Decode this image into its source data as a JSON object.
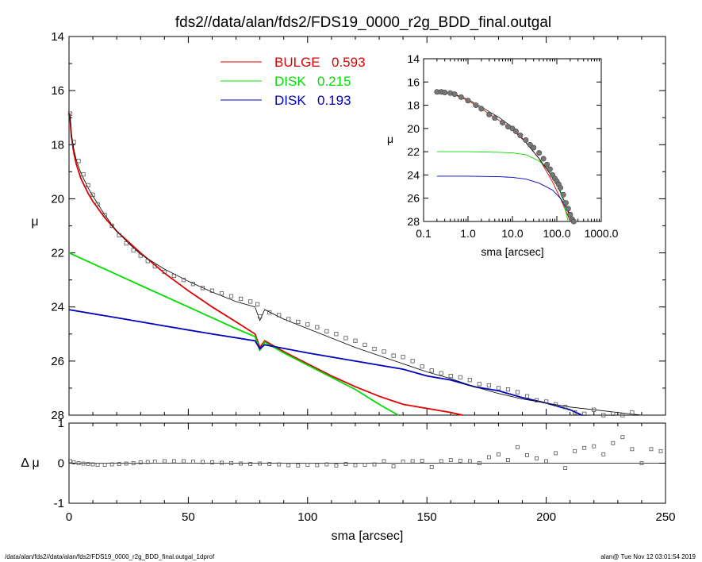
{
  "title": "fds2//data/alan/fds2/FDS19_0000_r2g_BDD_final.outgal",
  "footer": {
    "left": "/data/alan/fds2//data/alan/fds2/FDS19_0000_r2g_BDD_final.outgal_1dprof",
    "right": "alan@  Tue Nov 12 03:01:54 2019"
  },
  "colors": {
    "bulge": "#e00000",
    "disk1": "#00dd00",
    "disk2": "#0000c0",
    "data": "#000000",
    "model": "#000000"
  },
  "chart_data": [
    {
      "panel": "main",
      "type": "line",
      "title": "fds2//data/alan/fds2/FDS19_0000_r2g_BDD_final.outgal",
      "xlabel": "",
      "ylabel": "μ",
      "xlim": [
        0,
        250
      ],
      "ylim": [
        28,
        14
      ],
      "yticks": [
        "14",
        "16",
        "18",
        "20",
        "22",
        "24",
        "26",
        "28"
      ],
      "legend_position": "top-center",
      "legend": [
        {
          "label": "BULGE",
          "value": "0.593",
          "color": "#e00000"
        },
        {
          "label": "DISK",
          "value": "0.215",
          "color": "#00dd00"
        },
        {
          "label": "DISK",
          "value": "0.193",
          "color": "#0000c0"
        }
      ],
      "series": [
        {
          "name": "BULGE",
          "color": "#e00000",
          "x": [
            0.3,
            1,
            2,
            3,
            5,
            8,
            10,
            15,
            20,
            25,
            30,
            40,
            50,
            60,
            70,
            78,
            80,
            82,
            90,
            100,
            110,
            120,
            130,
            140,
            150,
            160,
            165
          ],
          "y": [
            16.85,
            17.7,
            18.3,
            18.7,
            19.25,
            19.8,
            20.1,
            20.7,
            21.2,
            21.6,
            22.0,
            22.75,
            23.4,
            24.0,
            24.55,
            25.0,
            25.5,
            25.25,
            25.65,
            26.1,
            26.55,
            26.95,
            27.3,
            27.6,
            27.75,
            27.9,
            28.0
          ]
        },
        {
          "name": "DISK",
          "color": "#00dd00",
          "x": [
            0,
            10,
            20,
            30,
            40,
            50,
            60,
            70,
            78,
            80,
            82,
            90,
            100,
            110,
            120,
            130,
            138
          ],
          "y": [
            22.0,
            22.4,
            22.8,
            23.2,
            23.6,
            24.0,
            24.4,
            24.8,
            25.1,
            25.6,
            25.3,
            25.7,
            26.15,
            26.6,
            27.05,
            27.6,
            28.0
          ]
        },
        {
          "name": "DISK",
          "color": "#0000c0",
          "x": [
            0,
            20,
            40,
            60,
            78,
            80,
            82,
            100,
            120,
            140,
            150,
            160,
            170,
            180,
            190,
            200,
            210,
            215
          ],
          "y": [
            24.1,
            24.4,
            24.7,
            25.0,
            25.25,
            25.55,
            25.4,
            25.7,
            26.0,
            26.3,
            26.55,
            26.7,
            26.95,
            27.1,
            27.35,
            27.55,
            27.8,
            28.0
          ]
        },
        {
          "name": "",
          "kind": "model",
          "color": "#000000",
          "x": [
            0.3,
            1,
            2,
            3,
            5,
            8,
            10,
            15,
            20,
            25,
            30,
            40,
            50,
            60,
            70,
            78,
            80,
            82,
            90,
            100,
            110,
            120,
            130,
            140,
            150,
            160,
            170,
            180,
            190,
            200,
            210,
            220,
            230,
            240,
            250
          ],
          "y": [
            16.85,
            17.6,
            18.15,
            18.55,
            19.05,
            19.6,
            19.9,
            20.6,
            21.2,
            21.65,
            22.05,
            22.6,
            23.05,
            23.45,
            23.8,
            24.0,
            24.5,
            24.1,
            24.45,
            24.8,
            25.15,
            25.5,
            25.8,
            26.1,
            26.4,
            26.65,
            26.95,
            27.2,
            27.4,
            27.55,
            27.7,
            27.8,
            27.9,
            28.0,
            28.05
          ]
        },
        {
          "name": "",
          "kind": "data",
          "color": "#000000",
          "x": [
            0.5,
            2,
            4,
            6,
            8,
            10,
            12,
            15,
            18,
            21,
            24,
            27,
            30,
            33,
            36,
            40,
            44,
            48,
            52,
            56,
            60,
            64,
            68,
            72,
            76,
            79,
            80,
            84,
            88,
            92,
            96,
            100,
            104,
            108,
            112,
            116,
            120,
            124,
            128,
            132,
            136,
            140,
            144,
            148,
            152,
            156,
            160,
            164,
            168,
            172,
            176,
            180,
            184,
            188,
            192,
            196,
            200,
            204,
            208,
            212,
            216,
            220,
            224,
            228,
            232,
            236,
            240
          ],
          "y": [
            16.85,
            17.9,
            18.6,
            19.1,
            19.5,
            19.85,
            20.2,
            20.6,
            21.0,
            21.35,
            21.65,
            21.9,
            22.1,
            22.3,
            22.5,
            22.7,
            22.85,
            23.0,
            23.15,
            23.3,
            23.4,
            23.5,
            23.6,
            23.7,
            23.8,
            23.9,
            24.35,
            24.2,
            24.3,
            24.45,
            24.55,
            24.65,
            24.75,
            24.9,
            25.0,
            25.15,
            25.25,
            25.4,
            25.55,
            25.65,
            25.8,
            25.85,
            26.0,
            26.2,
            26.35,
            26.45,
            26.55,
            26.6,
            26.7,
            26.85,
            26.9,
            27.0,
            27.05,
            27.15,
            27.3,
            27.45,
            27.5,
            27.6,
            27.7,
            27.9,
            27.95,
            27.8,
            28.0,
            27.95,
            28.0,
            27.9,
            28.1
          ]
        }
      ]
    },
    {
      "panel": "residual",
      "type": "scatter",
      "xlabel": "sma [arcsec]",
      "ylabel": "Δ μ",
      "xlim": [
        0,
        250
      ],
      "ylim": [
        -1,
        1
      ],
      "xticks": [
        "0",
        "50",
        "100",
        "150",
        "200",
        "250"
      ],
      "yticks": [
        "-1",
        "0",
        "1"
      ],
      "series": [
        {
          "name": "",
          "kind": "residual",
          "color": "#000000",
          "x": [
            0.5,
            2,
            4,
            6,
            8,
            10,
            12,
            15,
            18,
            21,
            24,
            27,
            30,
            33,
            36,
            40,
            44,
            48,
            52,
            56,
            60,
            64,
            68,
            72,
            76,
            80,
            84,
            88,
            92,
            96,
            100,
            104,
            108,
            112,
            116,
            120,
            124,
            128,
            132,
            136,
            140,
            144,
            148,
            152,
            156,
            160,
            164,
            168,
            172,
            176,
            180,
            184,
            188,
            192,
            196,
            200,
            204,
            208,
            212,
            216,
            220,
            224,
            228,
            232,
            236,
            240,
            244,
            248
          ],
          "y": [
            0.05,
            0.02,
            0.0,
            -0.01,
            -0.02,
            -0.03,
            -0.04,
            -0.04,
            -0.03,
            -0.02,
            -0.01,
            0.0,
            0.02,
            0.03,
            0.04,
            0.05,
            0.05,
            0.05,
            0.04,
            0.03,
            0.02,
            0.01,
            0.0,
            -0.01,
            -0.02,
            -0.01,
            -0.02,
            -0.03,
            -0.05,
            -0.06,
            -0.04,
            -0.05,
            -0.03,
            -0.06,
            -0.02,
            -0.05,
            -0.04,
            -0.03,
            0.05,
            -0.08,
            0.04,
            0.05,
            0.06,
            -0.1,
            0.05,
            0.08,
            0.06,
            0.05,
            0.0,
            0.15,
            0.22,
            0.08,
            0.4,
            0.2,
            0.12,
            0.05,
            0.25,
            -0.12,
            0.3,
            0.38,
            0.42,
            0.22,
            0.5,
            0.65,
            0.35,
            0.0,
            0.35,
            0.3
          ]
        }
      ]
    },
    {
      "panel": "inset",
      "type": "line",
      "xlabel": "sma [arcsec]",
      "ylabel": "μ",
      "xscale": "log",
      "xlim": [
        0.1,
        1000
      ],
      "ylim": [
        28,
        14
      ],
      "xticks": [
        "0.1",
        "1.0",
        "10.0",
        "100.0",
        "1000.0"
      ],
      "yticks": [
        "14",
        "16",
        "18",
        "20",
        "22",
        "24",
        "26",
        "28"
      ],
      "series": [
        {
          "name": "BULGE",
          "color": "#e00000",
          "x": [
            0.2,
            0.3,
            0.5,
            1,
            2,
            5,
            10,
            20,
            40,
            80,
            120,
            160,
            200
          ],
          "y": [
            16.85,
            16.9,
            17.1,
            17.6,
            18.3,
            19.3,
            20.1,
            21.2,
            22.6,
            24.6,
            26.0,
            27.1,
            28.0
          ]
        },
        {
          "name": "DISK",
          "color": "#00dd00",
          "x": [
            0.2,
            1,
            5,
            10,
            20,
            40,
            60,
            80,
            100,
            120,
            140,
            160,
            180
          ],
          "y": [
            22.0,
            22.0,
            22.05,
            22.1,
            22.25,
            22.8,
            23.4,
            24.0,
            24.8,
            25.5,
            26.3,
            27.2,
            28.0
          ]
        },
        {
          "name": "DISK",
          "color": "#0000c0",
          "x": [
            0.2,
            1,
            5,
            10,
            20,
            40,
            80,
            120,
            160,
            200,
            220
          ],
          "y": [
            24.1,
            24.1,
            24.15,
            24.2,
            24.35,
            24.7,
            25.3,
            26.0,
            26.8,
            27.6,
            28.0
          ]
        },
        {
          "name": "",
          "kind": "model",
          "color": "#000000",
          "x": [
            0.2,
            0.3,
            0.5,
            1,
            2,
            5,
            10,
            20,
            40,
            80,
            120,
            160,
            200,
            240
          ],
          "y": [
            16.85,
            16.9,
            17.05,
            17.5,
            18.15,
            19.05,
            19.9,
            21.2,
            22.6,
            24.2,
            25.4,
            26.6,
            27.5,
            28.0
          ]
        },
        {
          "name": "",
          "kind": "data",
          "color": "#000000",
          "x": [
            0.2,
            0.25,
            0.3,
            0.4,
            0.5,
            0.7,
            1,
            1.5,
            2,
            3,
            4,
            6,
            8,
            10,
            12,
            15,
            20,
            25,
            30,
            40,
            50,
            60,
            70,
            80,
            90,
            100,
            110,
            120,
            140,
            160,
            180,
            200,
            220,
            240
          ],
          "y": [
            16.85,
            16.85,
            16.9,
            16.95,
            17.05,
            17.3,
            17.6,
            18.0,
            18.3,
            18.8,
            19.1,
            19.5,
            19.85,
            20.0,
            20.25,
            20.6,
            21.0,
            21.4,
            21.65,
            22.1,
            22.6,
            23.1,
            23.5,
            24.0,
            24.3,
            24.55,
            24.8,
            25.1,
            25.7,
            26.4,
            26.9,
            27.4,
            27.8,
            28.0
          ]
        }
      ]
    }
  ]
}
